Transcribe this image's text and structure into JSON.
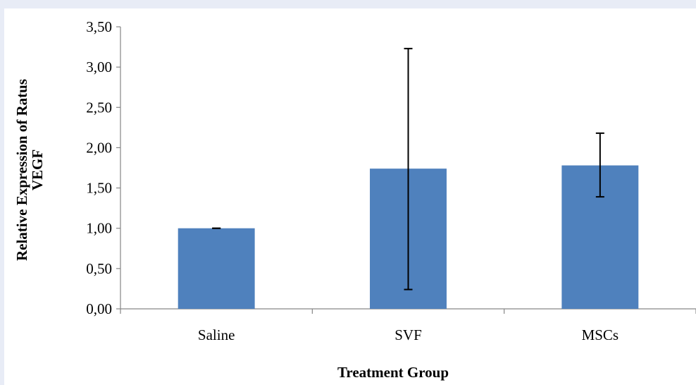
{
  "chart_data": {
    "type": "bar",
    "categories": [
      "Saline",
      "SVF",
      "MSCs"
    ],
    "values": [
      1.0,
      1.74,
      1.78
    ],
    "error_low": [
      1.0,
      0.24,
      1.39
    ],
    "error_high": [
      1.0,
      3.23,
      2.18
    ],
    "ylabel_line1": "Relative Expression of Ratus",
    "ylabel_line2": "VEGF",
    "xlabel": "Treatment Group",
    "ylim": [
      0,
      3.5
    ],
    "yticks": [
      "0,00",
      "0,50",
      "1,00",
      "1,50",
      "2,00",
      "2,50",
      "3,00",
      "3,50"
    ],
    "ytick_values": [
      0,
      0.5,
      1.0,
      1.5,
      2.0,
      2.5,
      3.0,
      3.5
    ],
    "bar_color": "#4f81bd",
    "grid": false,
    "legend": "none"
  }
}
